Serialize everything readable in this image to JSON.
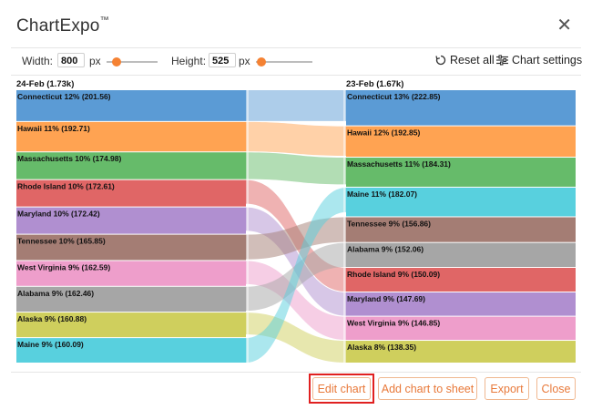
{
  "dialog": {
    "title": "ChartExpo",
    "trademark": "™",
    "close_icon": "close-icon"
  },
  "toolbar": {
    "width_label": "Width:",
    "width_value": "800",
    "width_unit": "px",
    "width_slider_fraction": 0.2,
    "height_label": "Height:",
    "height_value": "525",
    "height_unit": "px",
    "height_slider_fraction": 0.1,
    "reset_icon": "reset-icon",
    "reset_label": "Reset all",
    "settings_icon": "sliders-icon",
    "settings_label": "Chart settings"
  },
  "chart_data": {
    "type": "sankey",
    "left_header": "24-Feb (1.73k)",
    "right_header": "23-Feb (1.67k)",
    "colors": {
      "Connecticut": "#5b9bd5",
      "Hawaii": "#ffa352",
      "Massachusetts": "#66bb6a",
      "Rhode Island": "#e06666",
      "Maryland": "#b08fd0",
      "Tennessee": "#a47d74",
      "West Virginia": "#ee9ecb",
      "Alabama": "#a6a6a6",
      "Alaska": "#cfcf5d",
      "Maine": "#58d0de"
    },
    "left_nodes": [
      {
        "name": "Connecticut",
        "value": 201.56,
        "label": "Connecticut 12% (201.56)"
      },
      {
        "name": "Hawaii",
        "value": 192.71,
        "label": "Hawaii 11% (192.71)"
      },
      {
        "name": "Massachusetts",
        "value": 174.98,
        "label": "Massachusetts 10% (174.98)"
      },
      {
        "name": "Rhode Island",
        "value": 172.61,
        "label": "Rhode Island 10% (172.61)"
      },
      {
        "name": "Maryland",
        "value": 172.42,
        "label": "Maryland 10% (172.42)"
      },
      {
        "name": "Tennessee",
        "value": 165.85,
        "label": "Tennessee 10% (165.85)"
      },
      {
        "name": "West Virginia",
        "value": 162.59,
        "label": "West Virginia 9% (162.59)"
      },
      {
        "name": "Alabama",
        "value": 162.46,
        "label": "Alabama 9% (162.46)"
      },
      {
        "name": "Alaska",
        "value": 160.88,
        "label": "Alaska 9% (160.88)"
      },
      {
        "name": "Maine",
        "value": 160.09,
        "label": "Maine 9% (160.09)"
      }
    ],
    "right_nodes": [
      {
        "name": "Connecticut",
        "value": 222.85,
        "label": "Connecticut 13% (222.85)"
      },
      {
        "name": "Hawaii",
        "value": 192.85,
        "label": "Hawaii 12% (192.85)"
      },
      {
        "name": "Massachusetts",
        "value": 184.31,
        "label": "Massachusetts 11% (184.31)"
      },
      {
        "name": "Maine",
        "value": 182.07,
        "label": "Maine 11% (182.07)"
      },
      {
        "name": "Tennessee",
        "value": 156.86,
        "label": "Tennessee 9% (156.86)"
      },
      {
        "name": "Alabama",
        "value": 152.06,
        "label": "Alabama 9% (152.06)"
      },
      {
        "name": "Rhode Island",
        "value": 150.09,
        "label": "Rhode Island 9% (150.09)"
      },
      {
        "name": "Maryland",
        "value": 147.69,
        "label": "Maryland 9% (147.69)"
      },
      {
        "name": "West Virginia",
        "value": 146.85,
        "label": "West Virginia 9% (146.85)"
      },
      {
        "name": "Alaska",
        "value": 138.35,
        "label": "Alaska 8% (138.35)"
      }
    ]
  },
  "footer": {
    "edit_label": "Edit chart",
    "add_label": "Add chart to sheet",
    "export_label": "Export",
    "close_label": "Close"
  }
}
